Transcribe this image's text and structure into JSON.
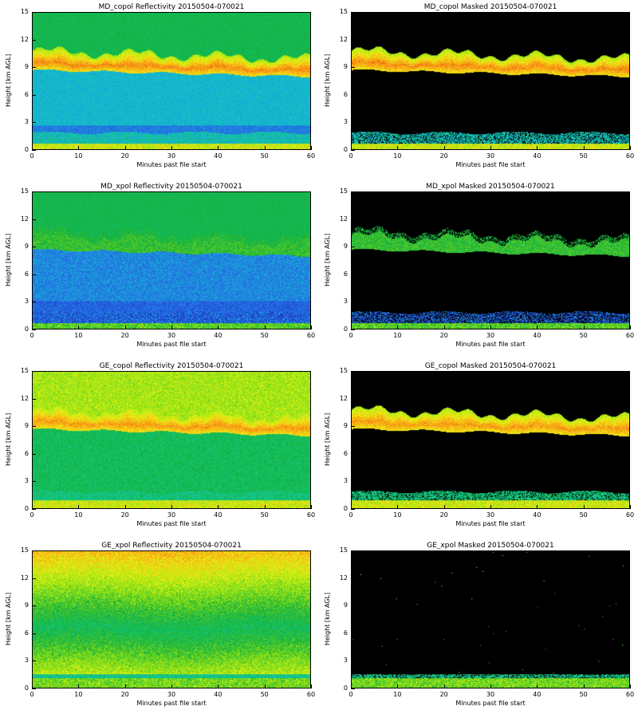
{
  "chart_data": [
    {
      "type": "heatmap",
      "title": "MD_copol Reflectivity 20150504-070021",
      "xlabel": "Minutes past file start",
      "ylabel": "Height [km AGL]",
      "xlim": [
        0,
        60
      ],
      "ylim": [
        0,
        15
      ],
      "xticks": [
        "0",
        "10",
        "20",
        "30",
        "40",
        "50",
        "60"
      ],
      "yticks": [
        "0",
        "3",
        "6",
        "9",
        "12",
        "15"
      ],
      "field": "md_copol",
      "masked": false
    },
    {
      "type": "heatmap",
      "title": "MD_copol Masked 20150504-070021",
      "xlabel": "Minutes past file start",
      "ylabel": "Height [km AGL]",
      "xlim": [
        0,
        60
      ],
      "ylim": [
        0,
        15
      ],
      "xticks": [
        "0",
        "10",
        "20",
        "30",
        "40",
        "50",
        "60"
      ],
      "yticks": [
        "0",
        "3",
        "6",
        "9",
        "12",
        "15"
      ],
      "field": "md_copol",
      "masked": true
    },
    {
      "type": "heatmap",
      "title": "MD_xpol Reflectivity 20150504-070021",
      "xlabel": "Minutes past file start",
      "ylabel": "Height [km AGL]",
      "xlim": [
        0,
        60
      ],
      "ylim": [
        0,
        15
      ],
      "xticks": [
        "0",
        "10",
        "20",
        "30",
        "40",
        "50",
        "60"
      ],
      "yticks": [
        "0",
        "3",
        "6",
        "9",
        "12",
        "15"
      ],
      "field": "md_xpol",
      "masked": false
    },
    {
      "type": "heatmap",
      "title": "MD_xpol Masked 20150504-070021",
      "xlabel": "Minutes past file start",
      "ylabel": "Height [km AGL]",
      "xlim": [
        0,
        60
      ],
      "ylim": [
        0,
        15
      ],
      "xticks": [
        "0",
        "10",
        "20",
        "30",
        "40",
        "50",
        "60"
      ],
      "yticks": [
        "0",
        "3",
        "6",
        "9",
        "12",
        "15"
      ],
      "field": "md_xpol",
      "masked": true
    },
    {
      "type": "heatmap",
      "title": "GE_copol Reflectivity 20150504-070021",
      "xlabel": "Minutes past file start",
      "ylabel": "Height [km AGL]",
      "xlim": [
        0,
        60
      ],
      "ylim": [
        0,
        15
      ],
      "xticks": [
        "0",
        "10",
        "20",
        "30",
        "40",
        "50",
        "60"
      ],
      "yticks": [
        "0",
        "3",
        "6",
        "9",
        "12",
        "15"
      ],
      "field": "ge_copol",
      "masked": false
    },
    {
      "type": "heatmap",
      "title": "GE_copol Masked 20150504-070021",
      "xlabel": "Minutes past file start",
      "ylabel": "Height [km AGL]",
      "xlim": [
        0,
        60
      ],
      "ylim": [
        0,
        15
      ],
      "xticks": [
        "0",
        "10",
        "20",
        "30",
        "40",
        "50",
        "60"
      ],
      "yticks": [
        "0",
        "3",
        "6",
        "9",
        "12",
        "15"
      ],
      "field": "ge_copol",
      "masked": true
    },
    {
      "type": "heatmap",
      "title": "GE_xpol Reflectivity 20150504-070021",
      "xlabel": "Minutes past file start",
      "ylabel": "Height [km AGL]",
      "xlim": [
        0,
        60
      ],
      "ylim": [
        0,
        15
      ],
      "xticks": [
        "0",
        "10",
        "20",
        "30",
        "40",
        "50",
        "60"
      ],
      "yticks": [
        "0",
        "3",
        "6",
        "9",
        "12",
        "15"
      ],
      "field": "ge_xpol",
      "masked": false
    },
    {
      "type": "heatmap",
      "title": "GE_xpol Masked 20150504-070021",
      "xlabel": "Minutes past file start",
      "ylabel": "Height [km AGL]",
      "xlim": [
        0,
        60
      ],
      "ylim": [
        0,
        15
      ],
      "xticks": [
        "0",
        "10",
        "20",
        "30",
        "40",
        "50",
        "60"
      ],
      "yticks": [
        "0",
        "3",
        "6",
        "9",
        "12",
        "15"
      ],
      "field": "ge_xpol",
      "masked": true
    }
  ],
  "mask_color": "#000000"
}
